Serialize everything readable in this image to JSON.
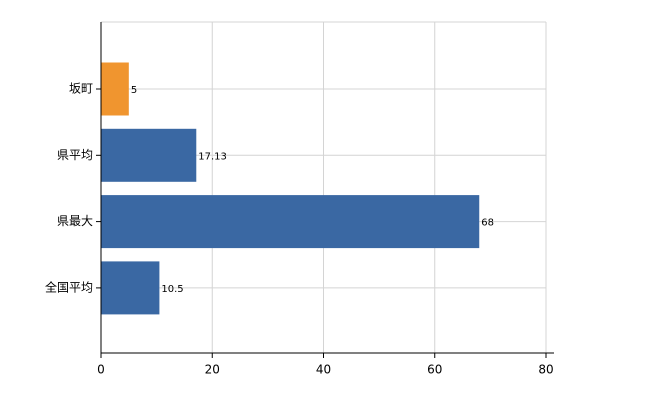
{
  "chart_data": {
    "type": "bar",
    "orientation": "horizontal",
    "categories": [
      "坂町",
      "県平均",
      "県最大",
      "全国平均"
    ],
    "values": [
      5,
      17.13,
      68,
      10.5
    ],
    "colors": [
      "#f0952f",
      "#3a68a3",
      "#3a68a3",
      "#3a68a3"
    ],
    "xlim": [
      0,
      80
    ],
    "xticks": [
      0,
      20,
      40,
      60,
      80
    ],
    "grid": true
  }
}
